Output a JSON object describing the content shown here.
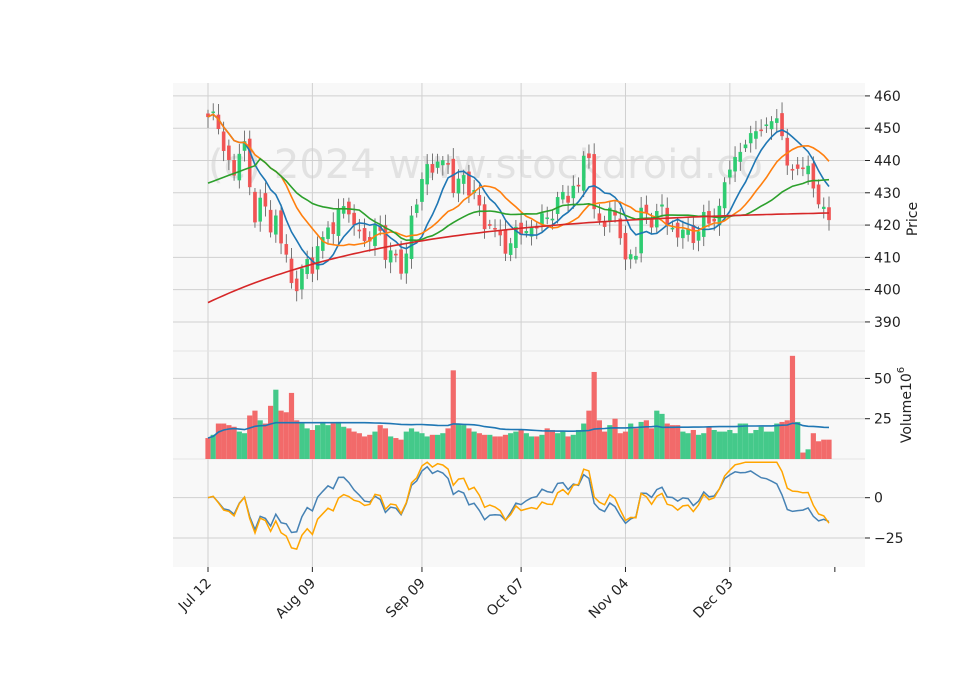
{
  "watermark": "(c) 2024 www.stockdroid.co",
  "colors": {
    "up": "#2ecc71",
    "down": "#f05454",
    "up_vol": "#44c98a",
    "down_vol": "#f26a6a",
    "ma_fast": "#1f77b4",
    "ma_mid": "#ff7f0e",
    "ma_slow": "#2ca02c",
    "ma_long": "#d62728",
    "osc1": "#4682b4",
    "osc2": "#ffa500",
    "panel_bg": "#f8f8f8",
    "grid": "#d0d0d0"
  },
  "chart_data": [
    {
      "type": "candlestick",
      "ylabel": "Price",
      "ylim": [
        381,
        464
      ],
      "yticks": [
        390,
        400,
        410,
        420,
        430,
        440,
        450,
        460
      ],
      "x_tick_labels": [
        "Jul 12",
        "Aug 09",
        "Sep 09",
        "Oct 07",
        "Nov 04",
        "Dec 03"
      ],
      "x_tick_index": [
        0,
        20,
        41,
        60,
        80,
        100
      ],
      "n_bars": 120,
      "closes": [
        453.5,
        455.1,
        449.8,
        443.0,
        440.2,
        435.4,
        442.0,
        445.9,
        431.8,
        420.9,
        428.4,
        425.8,
        417.8,
        422.9,
        414.4,
        410.9,
        402.1,
        399.6,
        406.5,
        409.4,
        405.0,
        413.4,
        416.2,
        419.2,
        417.3,
        424.8,
        425.8,
        423.4,
        420.1,
        418.3,
        415.1,
        415.0,
        420.0,
        418.3,
        409.3,
        412.1,
        410.9,
        405.0,
        411.1,
        422.9,
        426.3,
        434.2,
        438.8,
        436.3,
        439.6,
        440.0,
        438.9,
        430.0,
        434.3,
        435.4,
        429.2,
        430.8,
        426.1,
        418.8,
        420.2,
        419.0,
        416.9,
        411.2,
        414.3,
        419.4,
        417.0,
        418.1,
        419.2,
        419.0,
        423.6,
        422.3,
        421.9,
        428.6,
        430.2,
        427.0,
        432.1,
        432.3,
        441.4,
        440.8,
        425.0,
        421.4,
        419.5,
        425.3,
        423.0,
        416.0,
        409.4,
        410.9,
        410.4,
        425.3,
        423.7,
        419.3,
        424.3,
        426.3,
        419.9,
        419.1,
        416.2,
        418.5,
        418.8,
        414.5,
        418.0,
        424.0,
        420.5,
        421.2,
        425.9,
        433.2,
        437.1,
        441.0,
        442.6,
        444.9,
        448.4,
        449.0,
        449.5,
        451.1,
        452.1,
        453.0,
        447.6,
        438.5,
        437.3,
        437.5,
        437.4,
        438.3,
        431.4,
        426.5,
        425.6,
        421.6
      ]
    },
    {
      "type": "bar",
      "ylabel": "Volume  10^6",
      "ylabel_main": "Volume",
      "ylabel_exp": "10",
      "ylabel_pow": "6",
      "ylim": [
        0,
        67
      ],
      "yticks": [
        25,
        50
      ],
      "values": [
        13,
        15,
        22,
        22,
        21,
        20,
        17,
        16,
        27,
        30,
        24,
        22,
        33,
        43,
        30,
        29,
        41,
        24,
        22,
        19,
        18,
        21,
        23,
        21,
        22,
        23,
        20,
        19,
        17,
        16,
        14,
        15,
        17,
        21,
        19,
        14,
        13,
        12,
        17,
        19,
        17,
        16,
        14,
        15,
        15,
        16,
        19,
        55,
        22,
        21,
        19,
        17,
        16,
        15,
        15,
        14,
        14,
        15,
        16,
        17,
        18,
        16,
        14,
        14,
        15,
        19,
        18,
        16,
        17,
        14,
        15,
        18,
        22,
        30,
        54,
        24,
        17,
        21,
        25,
        16,
        17,
        22,
        19,
        23,
        24,
        19,
        30,
        28,
        22,
        21,
        21,
        17,
        16,
        18,
        15,
        16,
        20,
        18,
        17,
        17,
        18,
        16,
        22,
        22,
        16,
        18,
        20,
        17,
        17,
        22,
        23,
        24,
        64,
        23,
        4,
        6,
        16,
        11,
        12,
        12
      ]
    },
    {
      "type": "line",
      "ylim": [
        -43,
        24
      ],
      "yticks": [
        -25,
        0
      ]
    }
  ]
}
